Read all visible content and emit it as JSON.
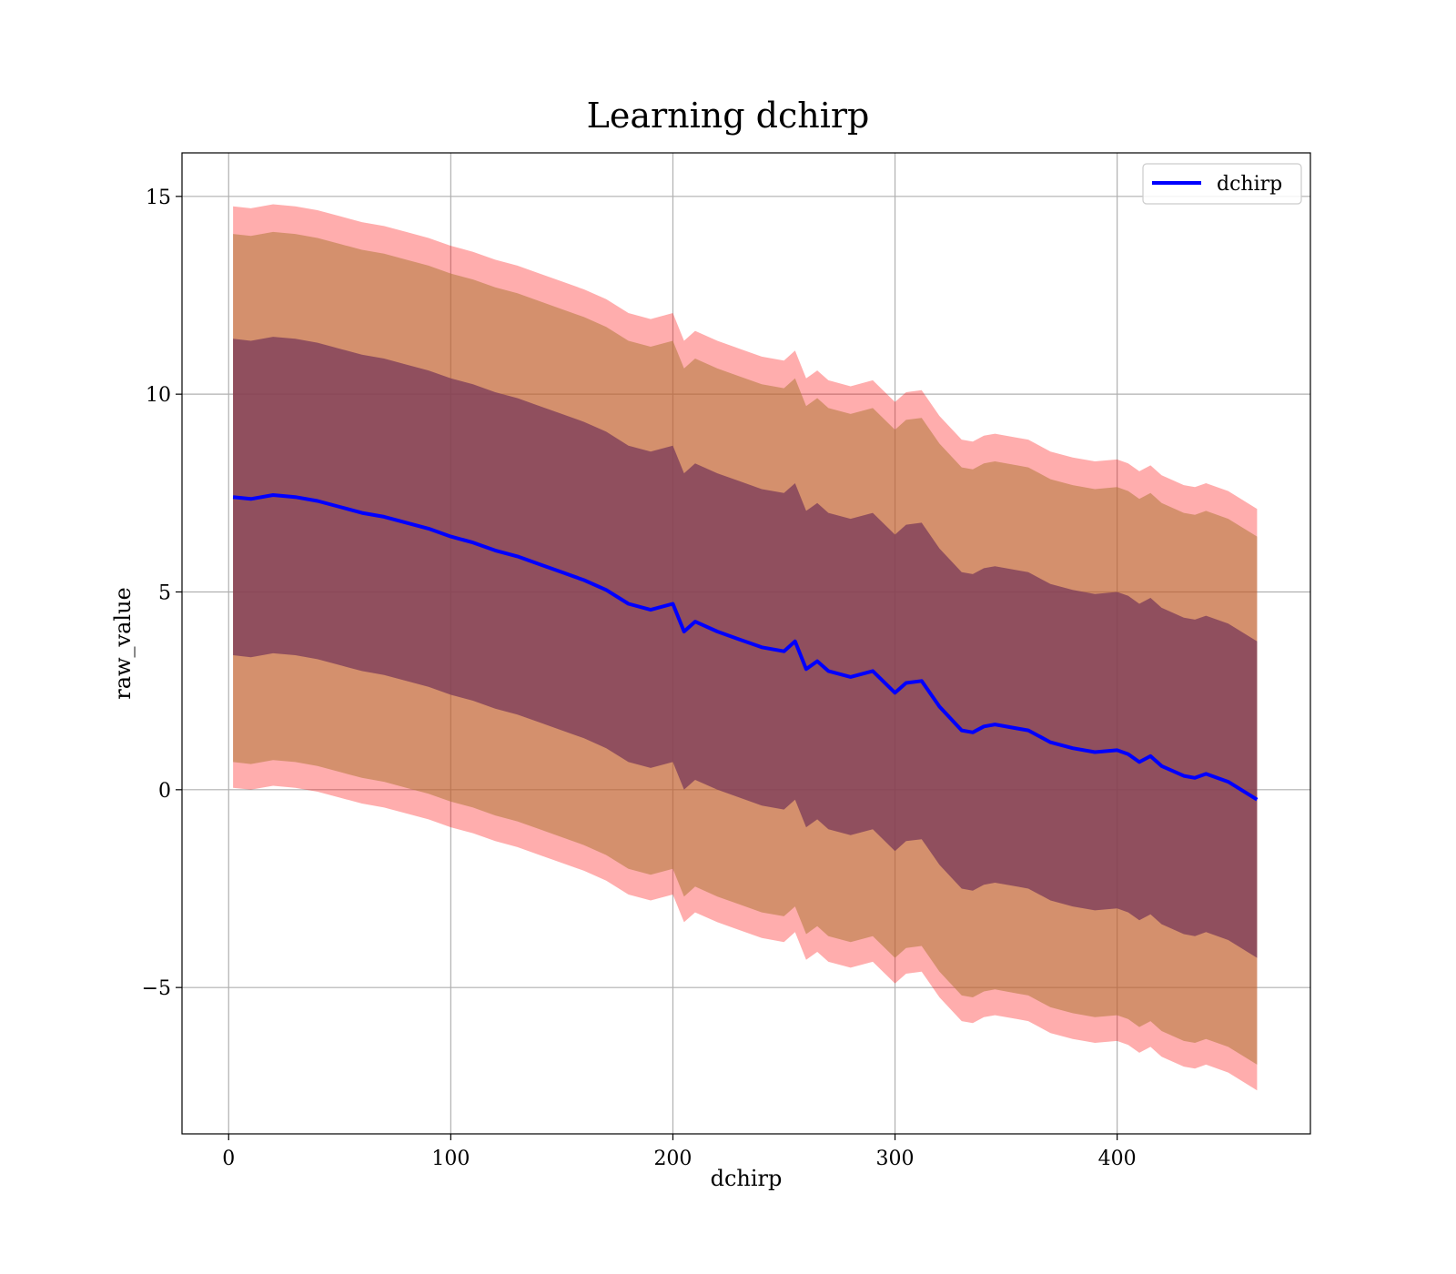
{
  "chart_data": {
    "type": "line",
    "title": "Learning dchirp",
    "xlabel": "dchirp",
    "ylabel": "raw_value",
    "xlim": [
      -21,
      487
    ],
    "ylim": [
      -8.7,
      16.1
    ],
    "xticks": [
      0,
      100,
      200,
      300,
      400
    ],
    "xtick_labels": [
      "0",
      "100",
      "200",
      "300",
      "400"
    ],
    "yticks": [
      -5,
      0,
      5,
      10,
      15
    ],
    "ytick_labels": [
      "−5",
      "0",
      "5",
      "10",
      "15"
    ],
    "grid": true,
    "legend": {
      "position": "top-right",
      "entries": [
        "dchirp"
      ]
    },
    "colors": {
      "line": "#0000ff",
      "band_outer": "#ff0000",
      "band_middle": "#b07838",
      "band_inner": "#7a3a5a"
    },
    "series": [
      {
        "name": "dchirp",
        "x": [
          2,
          10,
          20,
          30,
          40,
          50,
          60,
          70,
          80,
          90,
          100,
          110,
          120,
          130,
          140,
          150,
          160,
          170,
          180,
          190,
          200,
          205,
          210,
          220,
          230,
          240,
          250,
          255,
          260,
          265,
          270,
          280,
          290,
          300,
          305,
          312,
          320,
          330,
          335,
          340,
          345,
          355,
          360,
          370,
          380,
          390,
          400,
          405,
          410,
          415,
          420,
          430,
          435,
          440,
          450,
          463
        ],
        "y": [
          7.4,
          7.35,
          7.45,
          7.4,
          7.3,
          7.15,
          7.0,
          6.9,
          6.75,
          6.6,
          6.4,
          6.25,
          6.05,
          5.9,
          5.7,
          5.5,
          5.3,
          5.05,
          4.7,
          4.55,
          4.7,
          4.0,
          4.25,
          4.0,
          3.8,
          3.6,
          3.5,
          3.75,
          3.05,
          3.25,
          3.0,
          2.85,
          3.0,
          2.45,
          2.7,
          2.75,
          2.1,
          1.5,
          1.45,
          1.6,
          1.65,
          1.55,
          1.5,
          1.2,
          1.05,
          0.95,
          1.0,
          0.9,
          0.7,
          0.85,
          0.6,
          0.35,
          0.3,
          0.4,
          0.2,
          -0.25
        ]
      }
    ],
    "bands": [
      {
        "level": "outer",
        "upper_offset": 7.35,
        "lower_offset": -7.35
      },
      {
        "level": "middle",
        "upper_offset": 6.65,
        "lower_offset": -6.7
      },
      {
        "level": "inner",
        "upper_offset": 4.0,
        "lower_offset": -4.0
      }
    ]
  }
}
